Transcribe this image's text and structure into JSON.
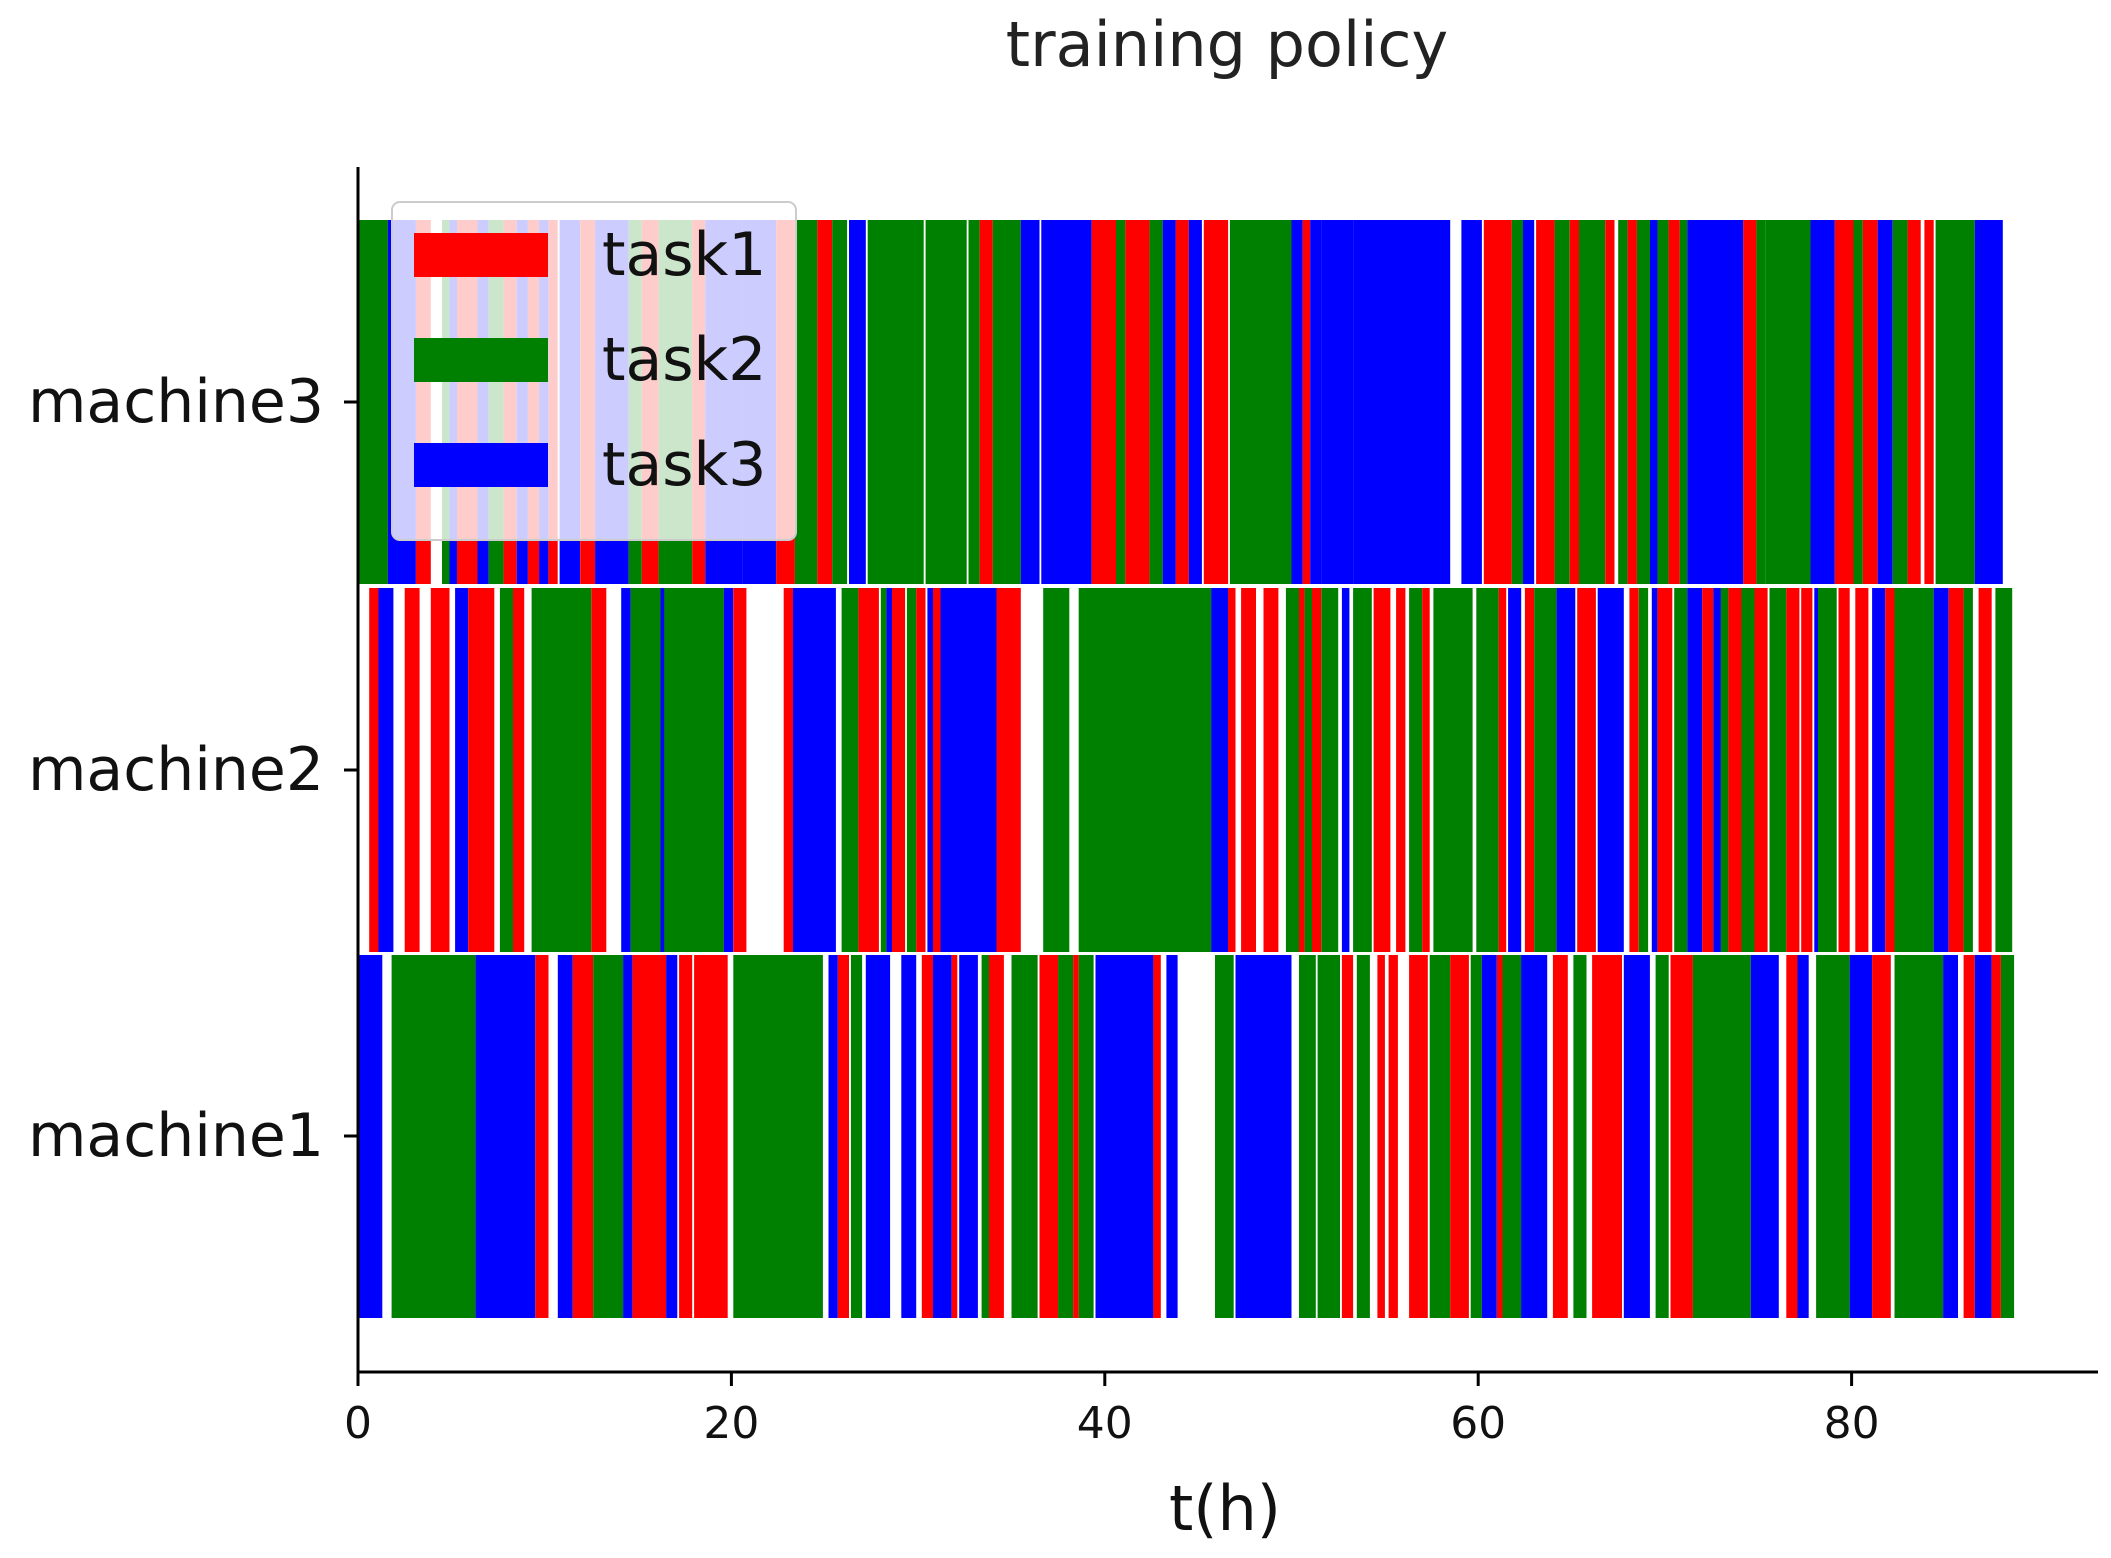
{
  "chart_data": {
    "type": "gantt",
    "title": "training policy",
    "xlabel": "t(h)",
    "ylabel": "",
    "xlim": [
      0,
      93
    ],
    "xticks": [
      0,
      20,
      40,
      60,
      80
    ],
    "xtick_labels": [
      "0",
      "20",
      "40",
      "60",
      "80"
    ],
    "machines": [
      "machine1",
      "machine2",
      "machine3"
    ],
    "tasks": [
      {
        "name": "task1",
        "color": "#ff0000"
      },
      {
        "name": "task2",
        "color": "#008000"
      },
      {
        "name": "task3",
        "color": "#0000ff"
      }
    ],
    "legend_position": "upper-left",
    "schedule": {
      "machine1": [
        [
          0.0,
          1.3,
          3
        ],
        [
          1.8,
          6.3,
          2
        ],
        [
          6.3,
          9.5,
          3
        ],
        [
          9.5,
          10.2,
          1
        ],
        [
          10.7,
          11.5,
          3
        ],
        [
          11.5,
          12.6,
          1
        ],
        [
          12.6,
          14.2,
          2
        ],
        [
          14.2,
          14.7,
          3
        ],
        [
          14.7,
          16.5,
          1
        ],
        [
          16.5,
          17.1,
          3
        ],
        [
          17.2,
          17.9,
          1
        ],
        [
          18.0,
          19.8,
          1
        ],
        [
          20.1,
          24.9,
          2
        ],
        [
          25.2,
          25.7,
          3
        ],
        [
          25.7,
          26.3,
          1
        ],
        [
          26.4,
          27.0,
          2
        ],
        [
          27.2,
          28.5,
          3
        ],
        [
          29.1,
          29.9,
          3
        ],
        [
          30.2,
          30.8,
          1
        ],
        [
          30.8,
          31.8,
          3
        ],
        [
          31.8,
          32.1,
          1
        ],
        [
          32.2,
          33.2,
          3
        ],
        [
          33.4,
          33.8,
          2
        ],
        [
          33.8,
          34.6,
          1
        ],
        [
          35.0,
          36.4,
          2
        ],
        [
          36.5,
          37.5,
          1
        ],
        [
          37.5,
          38.3,
          2
        ],
        [
          38.3,
          38.6,
          1
        ],
        [
          38.6,
          39.4,
          2
        ],
        [
          39.5,
          42.6,
          3
        ],
        [
          42.6,
          43.0,
          1
        ],
        [
          43.3,
          43.9,
          3
        ],
        [
          45.9,
          46.9,
          2
        ],
        [
          47.0,
          50.0,
          3
        ],
        [
          50.4,
          51.3,
          2
        ],
        [
          51.4,
          52.6,
          2
        ],
        [
          52.7,
          53.3,
          1
        ],
        [
          53.5,
          54.2,
          2
        ],
        [
          54.6,
          55.0,
          1
        ],
        [
          55.2,
          55.7,
          1
        ],
        [
          56.3,
          57.3,
          1
        ],
        [
          57.4,
          58.5,
          2
        ],
        [
          58.5,
          59.5,
          1
        ],
        [
          59.6,
          60.2,
          2
        ],
        [
          60.2,
          61.0,
          3
        ],
        [
          61.0,
          61.3,
          1
        ],
        [
          61.3,
          62.3,
          2
        ],
        [
          62.3,
          63.7,
          3
        ],
        [
          64.0,
          64.8,
          1
        ],
        [
          65.1,
          65.8,
          2
        ],
        [
          66.1,
          67.7,
          1
        ],
        [
          67.8,
          69.2,
          3
        ],
        [
          69.5,
          70.2,
          2
        ],
        [
          70.3,
          71.5,
          1
        ],
        [
          71.5,
          74.6,
          2
        ],
        [
          74.6,
          76.1,
          3
        ],
        [
          76.5,
          77.1,
          1
        ],
        [
          77.1,
          77.7,
          3
        ],
        [
          78.1,
          79.9,
          2
        ],
        [
          79.9,
          81.1,
          3
        ],
        [
          81.1,
          82.1,
          1
        ],
        [
          82.3,
          84.9,
          2
        ],
        [
          84.9,
          85.7,
          3
        ],
        [
          86.0,
          86.6,
          1
        ],
        [
          86.6,
          87.5,
          3
        ],
        [
          87.5,
          88.0,
          1
        ],
        [
          88.0,
          88.7,
          2
        ]
      ],
      "machine2": [
        [
          0.6,
          1.1,
          1
        ],
        [
          1.1,
          1.9,
          3
        ],
        [
          2.5,
          3.3,
          1
        ],
        [
          3.9,
          4.9,
          1
        ],
        [
          5.2,
          5.9,
          3
        ],
        [
          5.9,
          7.3,
          1
        ],
        [
          7.6,
          8.3,
          2
        ],
        [
          8.3,
          8.9,
          1
        ],
        [
          9.3,
          12.5,
          2
        ],
        [
          12.5,
          13.3,
          1
        ],
        [
          14.1,
          14.6,
          3
        ],
        [
          14.6,
          16.2,
          2
        ],
        [
          16.2,
          16.7,
          3
        ],
        [
          16.4,
          19.6,
          2
        ],
        [
          19.6,
          20.1,
          3
        ],
        [
          20.1,
          20.8,
          1
        ],
        [
          22.8,
          23.3,
          1
        ],
        [
          23.3,
          25.6,
          3
        ],
        [
          25.9,
          26.8,
          2
        ],
        [
          26.8,
          27.9,
          1
        ],
        [
          28.0,
          28.3,
          2
        ],
        [
          28.3,
          28.6,
          3
        ],
        [
          28.6,
          29.3,
          1
        ],
        [
          29.4,
          29.9,
          2
        ],
        [
          29.9,
          30.4,
          1
        ],
        [
          30.5,
          30.8,
          3
        ],
        [
          30.8,
          31.2,
          1
        ],
        [
          31.2,
          34.2,
          3
        ],
        [
          34.2,
          35.5,
          1
        ],
        [
          36.7,
          38.1,
          2
        ],
        [
          38.6,
          45.7,
          2
        ],
        [
          45.7,
          46.6,
          3
        ],
        [
          46.6,
          47.0,
          1
        ],
        [
          47.3,
          48.1,
          1
        ],
        [
          48.5,
          49.3,
          1
        ],
        [
          49.7,
          50.4,
          2
        ],
        [
          50.4,
          50.7,
          1
        ],
        [
          50.7,
          51.1,
          2
        ],
        [
          51.1,
          51.6,
          1
        ],
        [
          51.6,
          52.5,
          2
        ],
        [
          52.7,
          53.1,
          3
        ],
        [
          53.3,
          54.3,
          2
        ],
        [
          54.4,
          55.3,
          1
        ],
        [
          55.6,
          56.1,
          1
        ],
        [
          56.3,
          57.0,
          2
        ],
        [
          57.0,
          57.4,
          1
        ],
        [
          57.6,
          59.7,
          2
        ],
        [
          59.9,
          61.1,
          2
        ],
        [
          61.1,
          61.5,
          1
        ],
        [
          61.6,
          62.3,
          3
        ],
        [
          62.5,
          63.0,
          1
        ],
        [
          63.0,
          64.2,
          2
        ],
        [
          64.2,
          65.2,
          3
        ],
        [
          65.3,
          66.3,
          1
        ],
        [
          66.4,
          67.8,
          3
        ],
        [
          68.1,
          68.6,
          1
        ],
        [
          68.6,
          69.1,
          2
        ],
        [
          69.3,
          69.6,
          3
        ],
        [
          69.6,
          70.4,
          1
        ],
        [
          70.5,
          71.2,
          2
        ],
        [
          71.2,
          72.0,
          3
        ],
        [
          72.0,
          72.6,
          1
        ],
        [
          72.6,
          73.0,
          3
        ],
        [
          73.0,
          73.4,
          2
        ],
        [
          73.4,
          74.1,
          1
        ],
        [
          74.1,
          74.8,
          2
        ],
        [
          74.8,
          75.5,
          1
        ],
        [
          75.6,
          76.5,
          2
        ],
        [
          76.5,
          77.2,
          1
        ],
        [
          77.3,
          77.9,
          1
        ],
        [
          78.0,
          78.2,
          3
        ],
        [
          78.2,
          79.2,
          2
        ],
        [
          79.3,
          79.9,
          1
        ],
        [
          80.2,
          80.9,
          1
        ],
        [
          81.1,
          81.8,
          3
        ],
        [
          81.8,
          82.3,
          1
        ],
        [
          82.3,
          84.4,
          2
        ],
        [
          84.4,
          85.2,
          3
        ],
        [
          85.2,
          86.0,
          1
        ],
        [
          86.0,
          86.5,
          2
        ],
        [
          86.8,
          87.5,
          1
        ],
        [
          87.7,
          88.6,
          2
        ]
      ],
      "machine3": [
        [
          0.0,
          1.6,
          2
        ],
        [
          1.6,
          3.1,
          3
        ],
        [
          3.1,
          3.9,
          1
        ],
        [
          4.5,
          4.9,
          2
        ],
        [
          4.9,
          5.3,
          3
        ],
        [
          5.3,
          6.4,
          1
        ],
        [
          6.4,
          7.0,
          3
        ],
        [
          7.0,
          7.8,
          2
        ],
        [
          7.8,
          8.5,
          1
        ],
        [
          8.5,
          9.1,
          3
        ],
        [
          9.1,
          9.7,
          1
        ],
        [
          9.7,
          10.2,
          3
        ],
        [
          10.2,
          10.7,
          1
        ],
        [
          10.8,
          11.9,
          3
        ],
        [
          11.9,
          12.7,
          1
        ],
        [
          12.7,
          14.5,
          3
        ],
        [
          14.5,
          15.2,
          2
        ],
        [
          15.2,
          16.1,
          1
        ],
        [
          16.1,
          17.9,
          2
        ],
        [
          17.9,
          18.6,
          1
        ],
        [
          18.6,
          20.6,
          3
        ],
        [
          20.6,
          22.4,
          3
        ],
        [
          22.4,
          23.4,
          1
        ],
        [
          23.4,
          24.6,
          2
        ],
        [
          24.6,
          25.4,
          1
        ],
        [
          25.4,
          26.2,
          2
        ],
        [
          26.3,
          27.2,
          3
        ],
        [
          27.3,
          30.3,
          2
        ],
        [
          30.4,
          32.6,
          2
        ],
        [
          32.7,
          33.3,
          2
        ],
        [
          33.3,
          34.0,
          1
        ],
        [
          34.0,
          35.5,
          2
        ],
        [
          35.5,
          36.5,
          3
        ],
        [
          36.6,
          39.3,
          3
        ],
        [
          39.3,
          40.6,
          1
        ],
        [
          40.6,
          41.1,
          2
        ],
        [
          41.1,
          42.4,
          1
        ],
        [
          42.4,
          43.1,
          2
        ],
        [
          43.1,
          43.8,
          3
        ],
        [
          43.8,
          44.5,
          1
        ],
        [
          44.5,
          45.2,
          3
        ],
        [
          45.3,
          46.6,
          1
        ],
        [
          46.7,
          50.0,
          2
        ],
        [
          50.0,
          50.6,
          3
        ],
        [
          50.6,
          51.0,
          1
        ],
        [
          51.0,
          51.6,
          3
        ],
        [
          51.6,
          53.3,
          3
        ],
        [
          53.3,
          56.0,
          3
        ],
        [
          56.0,
          58.5,
          3
        ],
        [
          59.1,
          60.2,
          3
        ],
        [
          60.3,
          61.8,
          1
        ],
        [
          61.8,
          62.4,
          2
        ],
        [
          62.4,
          63.0,
          3
        ],
        [
          63.1,
          64.1,
          1
        ],
        [
          64.1,
          64.9,
          2
        ],
        [
          64.9,
          65.4,
          1
        ],
        [
          65.4,
          66.8,
          2
        ],
        [
          66.8,
          67.3,
          1
        ],
        [
          67.5,
          68.0,
          2
        ],
        [
          68.0,
          68.5,
          1
        ],
        [
          68.5,
          69.2,
          2
        ],
        [
          69.2,
          69.6,
          3
        ],
        [
          69.6,
          70.2,
          2
        ],
        [
          70.2,
          70.8,
          1
        ],
        [
          70.8,
          71.2,
          2
        ],
        [
          71.2,
          74.2,
          3
        ],
        [
          74.2,
          74.9,
          1
        ],
        [
          74.9,
          75.4,
          2
        ],
        [
          75.4,
          77.8,
          2
        ],
        [
          77.8,
          79.1,
          3
        ],
        [
          79.1,
          80.1,
          1
        ],
        [
          80.1,
          80.6,
          2
        ],
        [
          80.6,
          81.4,
          1
        ],
        [
          81.4,
          82.2,
          3
        ],
        [
          82.2,
          83.0,
          2
        ],
        [
          83.0,
          83.7,
          1
        ],
        [
          83.9,
          84.4,
          1
        ],
        [
          84.5,
          86.6,
          2
        ],
        [
          86.6,
          88.1,
          3
        ]
      ]
    }
  }
}
